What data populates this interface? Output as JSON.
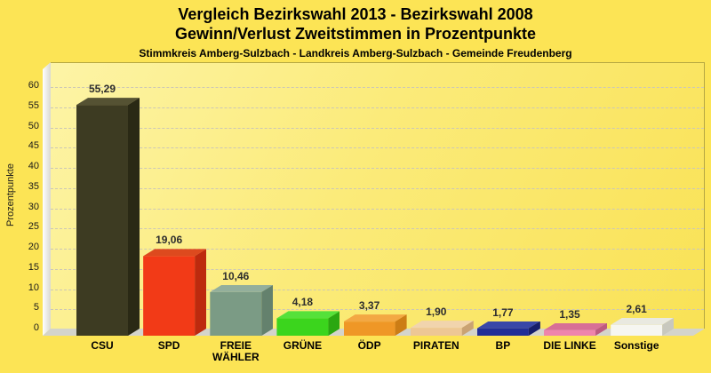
{
  "chart_data": {
    "type": "bar",
    "style": "3d-column",
    "title": "Vergleich Bezirkswahl 2013 - Bezirkswahl 2008",
    "subtitle": "Gewinn/Verlust Zweitstimmen in Prozentpunkte",
    "caption": "Stimmkreis Amberg-Sulzbach - Landkreis Amberg-Sulzbach - Gemeinde Freudenberg",
    "ylabel": "Prozentpunkte",
    "xlabel": "",
    "ylim": [
      0,
      65
    ],
    "yticks": [
      0,
      5,
      10,
      15,
      20,
      25,
      30,
      35,
      40,
      45,
      50,
      55,
      60
    ],
    "grid": "horizontal-dashed",
    "legend": "none",
    "value_decimal_separator": ",",
    "categories": [
      "CSU",
      "SPD",
      "FREIE WÄHLER",
      "GRÜNE",
      "ÖDP",
      "PIRATEN",
      "BP",
      "DIE LINKE",
      "Sonstige"
    ],
    "values": [
      55.29,
      19.06,
      10.46,
      4.18,
      3.37,
      1.9,
      1.77,
      1.35,
      2.61
    ],
    "value_labels": [
      "55,29",
      "19,06",
      "10,46",
      "4,18",
      "3,37",
      "1,90",
      "1,77",
      "1,35",
      "2,61"
    ],
    "bar_colors": [
      {
        "front": "#3d3b22",
        "top": "#555233",
        "side": "#2a2915"
      },
      {
        "front": "#f23a17",
        "top": "#dd4a1e",
        "side": "#bd2a0e"
      },
      {
        "front": "#7b9b85",
        "top": "#93af9c",
        "side": "#64816d"
      },
      {
        "front": "#3bd51d",
        "top": "#55e13a",
        "side": "#2aa711"
      },
      {
        "front": "#ef9726",
        "top": "#f3a843",
        "side": "#cc7d15"
      },
      {
        "front": "#edc795",
        "top": "#f1d4ad",
        "side": "#c9a273"
      },
      {
        "front": "#212e97",
        "top": "#3947a8",
        "side": "#171f6b"
      },
      {
        "front": "#ee84ac",
        "top": "#d76f96",
        "side": "#bc5a80"
      },
      {
        "front": "#f6f6f1",
        "top": "#e9e9e0",
        "side": "#c8c8be"
      }
    ],
    "colors_meaning": "party brand colors",
    "background_color": "#fce455",
    "plot_background": "pale-yellow-gradient"
  }
}
